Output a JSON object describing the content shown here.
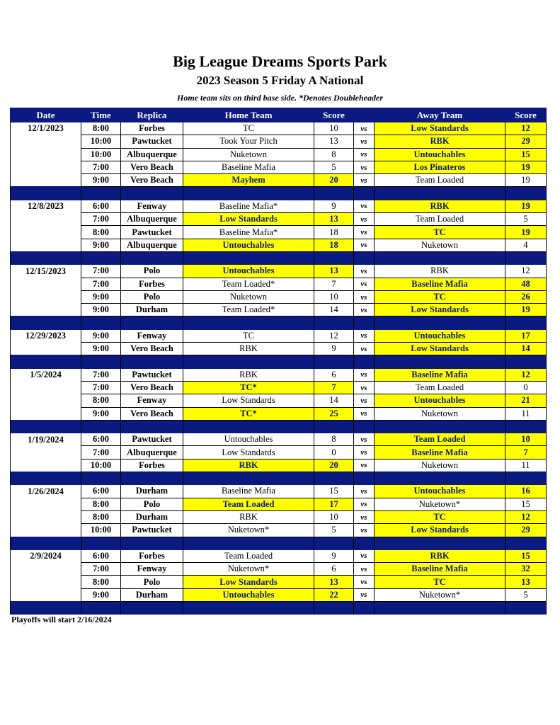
{
  "title": "Big League Dreams Sports Park",
  "subtitle": "2023 Season 5 Friday A National",
  "note": "Home team sits on third base side.  *Denotes Doubleheader",
  "headers": [
    "Date",
    "Time",
    "Replica",
    "Home Team",
    "Score",
    "",
    "Away Team",
    "Score"
  ],
  "vs_label": "vs",
  "highlight_color": "#ffff00",
  "header_color": "#0a1a80",
  "groups": [
    {
      "date": "12/1/2023",
      "games": [
        [
          "8:00",
          "Forbes",
          "TC",
          10,
          "Low Standards",
          12
        ],
        [
          "10:00",
          "Pawtucket",
          "Took Your Pitch",
          13,
          "RBK",
          29
        ],
        [
          "10:00",
          "Albuquerque",
          "Nuketown",
          8,
          "Untouchables",
          15
        ],
        [
          "7:00",
          "Vero Beach",
          "Baseline Mafia",
          5,
          "Los Pinateros",
          19
        ],
        [
          "9:00",
          "Vero Beach",
          "Mayhem",
          20,
          "Team Loaded",
          19
        ]
      ]
    },
    {
      "date": "12/8/2023",
      "games": [
        [
          "6:00",
          "Fenway",
          "Baseline Mafia*",
          9,
          "RBK",
          19
        ],
        [
          "7:00",
          "Albuquerque",
          "Low Standards",
          13,
          "Team Loaded",
          5
        ],
        [
          "8:00",
          "Pawtucket",
          "Baseline Mafia*",
          18,
          "TC",
          19
        ],
        [
          "9:00",
          "Albuquerque",
          "Untouchables",
          18,
          "Nuketown",
          4
        ]
      ]
    },
    {
      "date": "12/15/2023",
      "games": [
        [
          "7:00",
          "Polo",
          "Untouchables",
          13,
          "RBK",
          12
        ],
        [
          "7:00",
          "Forbes",
          "Team Loaded*",
          7,
          "Baseline Mafia",
          48
        ],
        [
          "9:00",
          "Polo",
          "Nuketown",
          10,
          "TC",
          26
        ],
        [
          "9:00",
          "Durham",
          "Team Loaded*",
          14,
          "Low Standards",
          19
        ]
      ]
    },
    {
      "date": "12/29/2023",
      "games": [
        [
          "9:00",
          "Fenway",
          "TC",
          12,
          "Untouchables",
          17
        ],
        [
          "9:00",
          "Vero Beach",
          "RBK",
          9,
          "Low Standards",
          14
        ]
      ]
    },
    {
      "date": "1/5/2024",
      "games": [
        [
          "7:00",
          "Pawtucket",
          "RBK",
          6,
          "Baseline Mafia",
          12
        ],
        [
          "7:00",
          "Vero Beach",
          "TC*",
          7,
          "Team Loaded",
          0
        ],
        [
          "8:00",
          "Fenway",
          "Low Standards",
          14,
          "Untouchables",
          21
        ],
        [
          "9:00",
          "Vero Beach",
          "TC*",
          25,
          "Nuketown",
          11
        ]
      ]
    },
    {
      "date": "1/19/2024",
      "games": [
        [
          "6:00",
          "Pawtucket",
          "Untouchables",
          8,
          "Team Loaded",
          10
        ],
        [
          "7:00",
          "Albuquerque",
          "Low Standards",
          0,
          "Baseline Mafia",
          7
        ],
        [
          "10:00",
          "Forbes",
          "RBK",
          20,
          "Nuketown",
          11
        ]
      ]
    },
    {
      "date": "1/26/2024",
      "games": [
        [
          "6:00",
          "Durham",
          "Baseline Mafia",
          15,
          "Untouchables",
          16
        ],
        [
          "8:00",
          "Polo",
          "Team Loaded",
          17,
          "Nuketown*",
          15
        ],
        [
          "8:00",
          "Durham",
          "RBK",
          10,
          "TC",
          12
        ],
        [
          "10:00",
          "Pawtucket",
          "Nuketown*",
          5,
          "Low Standards",
          29
        ]
      ]
    },
    {
      "date": "2/9/2024",
      "games": [
        [
          "6:00",
          "Forbes",
          "Team Loaded",
          9,
          "RBK",
          15
        ],
        [
          "7:00",
          "Fenway",
          "Nuketown*",
          6,
          "Baseline Mafia",
          32
        ],
        [
          "8:00",
          "Polo",
          "Low Standards",
          13,
          "TC",
          13
        ],
        [
          "9:00",
          "Durham",
          "Untouchables",
          22,
          "Nuketown*",
          5
        ]
      ]
    }
  ],
  "footer": "Playoffs will start 2/16/2024"
}
